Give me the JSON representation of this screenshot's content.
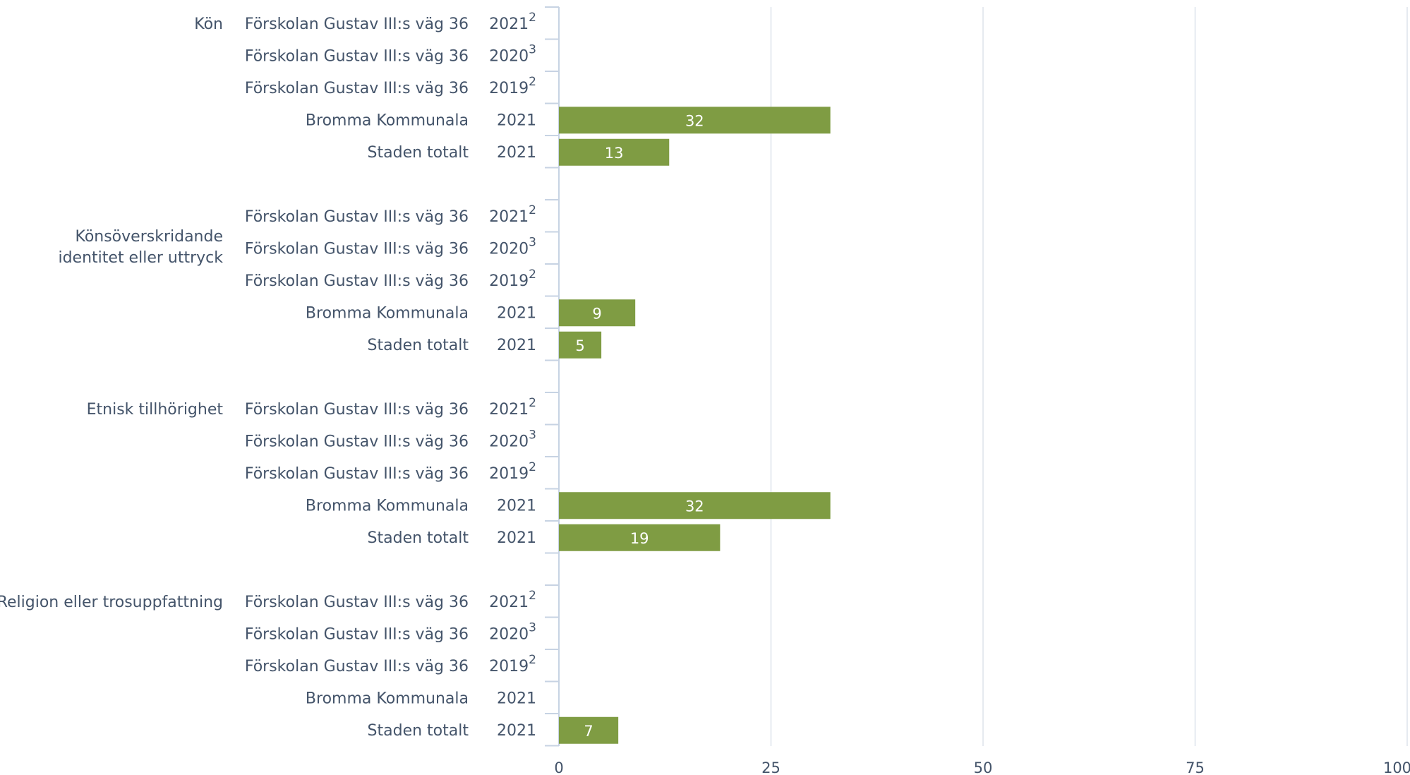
{
  "chart_data": {
    "type": "bar",
    "orientation": "horizontal",
    "title": "",
    "xlabel": "",
    "ylabel": "",
    "xlim": [
      0,
      100
    ],
    "ticks": [
      0,
      25,
      50,
      75,
      100
    ],
    "grid": true,
    "bar_color": "#7f9c43",
    "axis_color": "#c7d3e3",
    "text_color": "#44546a",
    "groups": [
      {
        "label_lines": [
          "Kön"
        ],
        "rows": [
          {
            "name": "Förskolan Gustav III:s väg 36",
            "year": "2021",
            "note": "2",
            "value": null
          },
          {
            "name": "Förskolan Gustav III:s väg 36",
            "year": "2020",
            "note": "3",
            "value": null
          },
          {
            "name": "Förskolan Gustav III:s väg 36",
            "year": "2019",
            "note": "2",
            "value": null
          },
          {
            "name": "Bromma Kommunala",
            "year": "2021",
            "note": "",
            "value": 32
          },
          {
            "name": "Staden totalt",
            "year": "2021",
            "note": "",
            "value": 13
          }
        ]
      },
      {
        "label_lines": [
          "Könsöverskridande",
          "identitet eller uttryck"
        ],
        "rows": [
          {
            "name": "Förskolan Gustav III:s väg 36",
            "year": "2021",
            "note": "2",
            "value": null
          },
          {
            "name": "Förskolan Gustav III:s väg 36",
            "year": "2020",
            "note": "3",
            "value": null
          },
          {
            "name": "Förskolan Gustav III:s väg 36",
            "year": "2019",
            "note": "2",
            "value": null
          },
          {
            "name": "Bromma Kommunala",
            "year": "2021",
            "note": "",
            "value": 9
          },
          {
            "name": "Staden totalt",
            "year": "2021",
            "note": "",
            "value": 5
          }
        ]
      },
      {
        "label_lines": [
          "Etnisk tillhörighet"
        ],
        "rows": [
          {
            "name": "Förskolan Gustav III:s väg 36",
            "year": "2021",
            "note": "2",
            "value": null
          },
          {
            "name": "Förskolan Gustav III:s väg 36",
            "year": "2020",
            "note": "3",
            "value": null
          },
          {
            "name": "Förskolan Gustav III:s väg 36",
            "year": "2019",
            "note": "2",
            "value": null
          },
          {
            "name": "Bromma Kommunala",
            "year": "2021",
            "note": "",
            "value": 32
          },
          {
            "name": "Staden totalt",
            "year": "2021",
            "note": "",
            "value": 19
          }
        ]
      },
      {
        "label_lines": [
          "Religion eller trosuppfattning"
        ],
        "rows": [
          {
            "name": "Förskolan Gustav III:s väg 36",
            "year": "2021",
            "note": "2",
            "value": null
          },
          {
            "name": "Förskolan Gustav III:s väg 36",
            "year": "2020",
            "note": "3",
            "value": null
          },
          {
            "name": "Förskolan Gustav III:s väg 36",
            "year": "2019",
            "note": "2",
            "value": null
          },
          {
            "name": "Bromma Kommunala",
            "year": "2021",
            "note": "",
            "value": null
          },
          {
            "name": "Staden totalt",
            "year": "2021",
            "note": "",
            "value": 7
          }
        ]
      }
    ]
  }
}
